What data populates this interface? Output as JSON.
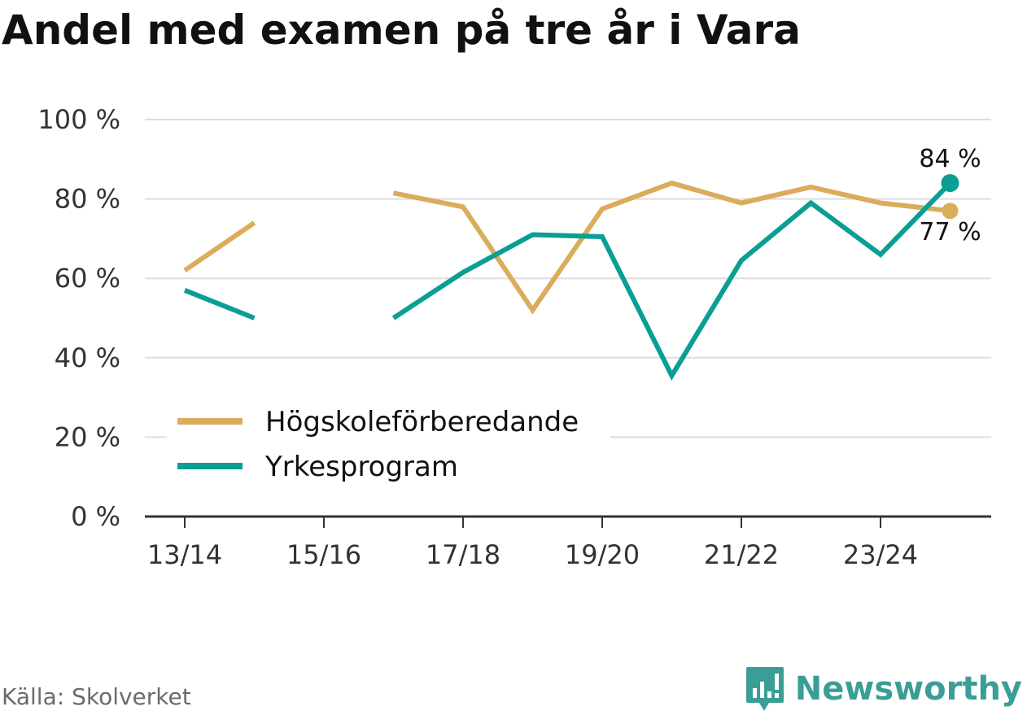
{
  "header": {
    "title": "Andel med examen på tre år i Vara"
  },
  "footer": {
    "source": "Källa: Skolverket",
    "brand": "Newsworthy"
  },
  "colors": {
    "hogskole": "#dbac5c",
    "yrkes": "#0a9e94",
    "grid": "#dddddd",
    "axis": "#333333",
    "brand": "#3b9e96"
  },
  "chart_data": {
    "type": "line",
    "title": "Andel med examen på tre år i Vara",
    "xlabel": "",
    "ylabel": "",
    "ylim": [
      0,
      100
    ],
    "y_ticks": [
      0,
      20,
      40,
      60,
      80,
      100
    ],
    "y_tick_labels": [
      "0 %",
      "20 %",
      "40 %",
      "60 %",
      "80 %",
      "100 %"
    ],
    "x": [
      "13/14",
      "14/15",
      "15/16",
      "16/17",
      "17/18",
      "18/19",
      "19/20",
      "20/21",
      "21/22",
      "22/23",
      "23/24",
      "24/25"
    ],
    "x_tick_labels": [
      "13/14",
      "15/16",
      "17/18",
      "19/20",
      "21/22",
      "23/24"
    ],
    "legend_position": "center-left",
    "series": [
      {
        "name": "Högskoleförberedande",
        "values": [
          62,
          74,
          null,
          81.5,
          78,
          52,
          77.5,
          84,
          79,
          83,
          79,
          77
        ],
        "end_label": "77 %"
      },
      {
        "name": "Yrkesprogram",
        "values": [
          57,
          50,
          null,
          50,
          61.5,
          71,
          70.5,
          35.5,
          64.5,
          79,
          66,
          84
        ],
        "end_label": "84 %"
      }
    ]
  }
}
